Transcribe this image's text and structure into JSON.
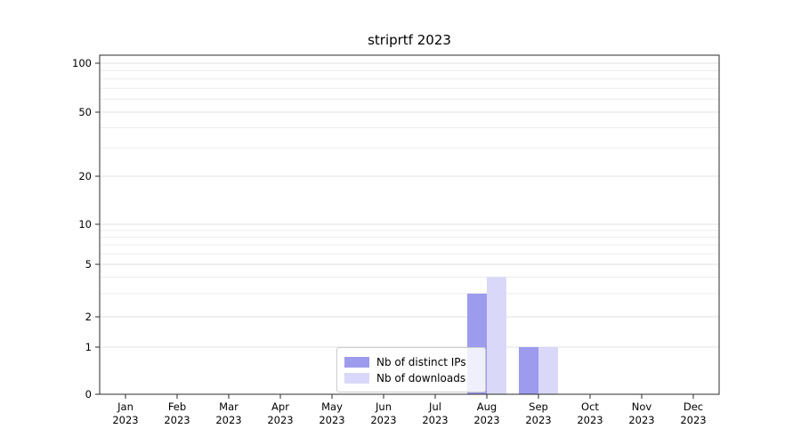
{
  "chart_data": {
    "type": "bar",
    "title": "striprtf 2023",
    "categories": [
      "Jan",
      "Feb",
      "Mar",
      "Apr",
      "May",
      "Jun",
      "Jul",
      "Aug",
      "Sep",
      "Oct",
      "Nov",
      "Dec"
    ],
    "year": "2023",
    "series": [
      {
        "name": "Nb of distinct IPs",
        "color": "#9d9bee",
        "values": [
          0,
          0,
          0,
          0,
          0,
          0,
          0,
          3,
          1,
          0,
          0,
          0
        ]
      },
      {
        "name": "Nb of downloads",
        "color": "#d9d8f8",
        "values": [
          0,
          0,
          0,
          0,
          0,
          0,
          0,
          4,
          1,
          0,
          0,
          0
        ]
      }
    ],
    "yticks": [
      0,
      1,
      2,
      5,
      10,
      20,
      50,
      100
    ],
    "ylim": [
      0,
      100
    ],
    "yscale": "symlog",
    "grid": true,
    "legend_position": "lower center",
    "xlabel": "",
    "ylabel": ""
  }
}
